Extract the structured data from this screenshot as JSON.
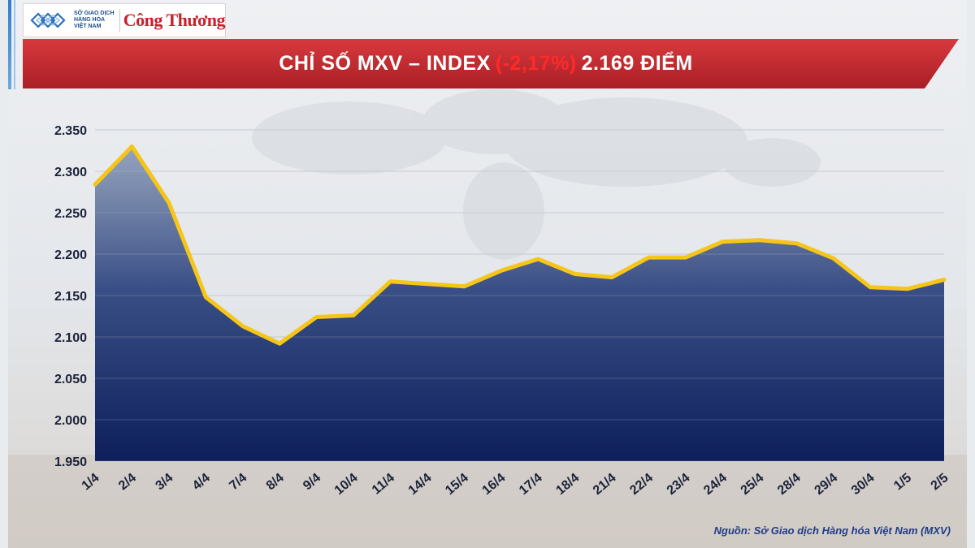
{
  "header": {
    "org_line1": "SỞ GIAO DỊCH",
    "org_line2": "HÀNG HÓA",
    "org_line3": "VIỆT NAM",
    "brand": "Công Thương"
  },
  "banner": {
    "title_prefix": "CHỈ SỐ MXV – INDEX",
    "change_pct": "(-2,17%)",
    "title_suffix": "2.169 ĐIỂM"
  },
  "colors": {
    "banner_red": "#c72a2f",
    "line_yellow": "#f5c518",
    "area_top": "#8d9db8",
    "area_bottom": "#0e1f5c",
    "pct_red": "#ff2a2a",
    "source_blue": "#1f3c88"
  },
  "chart_data": {
    "type": "area",
    "title": "",
    "xlabel": "",
    "ylabel": "",
    "categories": [
      "1/4",
      "2/4",
      "3/4",
      "4/4",
      "7/4",
      "8/4",
      "9/4",
      "10/4",
      "11/4",
      "14/4",
      "15/4",
      "16/4",
      "17/4",
      "18/4",
      "21/4",
      "22/4",
      "23/4",
      "24/4",
      "25/4",
      "28/4",
      "29/4",
      "30/4",
      "1/5",
      "2/5"
    ],
    "values": [
      2284,
      2330,
      2262,
      2148,
      2113,
      2092,
      2124,
      2126,
      2167,
      2164,
      2161,
      2180,
      2194,
      2176,
      2172,
      2196,
      2196,
      2215,
      2217,
      2213,
      2195,
      2160,
      2158,
      2169
    ],
    "ylim": [
      1950,
      2350
    ],
    "yticks": [
      1950,
      2000,
      2050,
      2100,
      2150,
      2200,
      2250,
      2300,
      2350
    ],
    "ytick_labels": [
      "1.950",
      "2.000",
      "2.050",
      "2.100",
      "2.150",
      "2.200",
      "2.250",
      "2.300",
      "2.350"
    ],
    "grid": true,
    "legend": "none"
  },
  "footer": {
    "source": "Nguồn: Sở Giao dịch Hàng hóa Việt Nam (MXV)"
  }
}
